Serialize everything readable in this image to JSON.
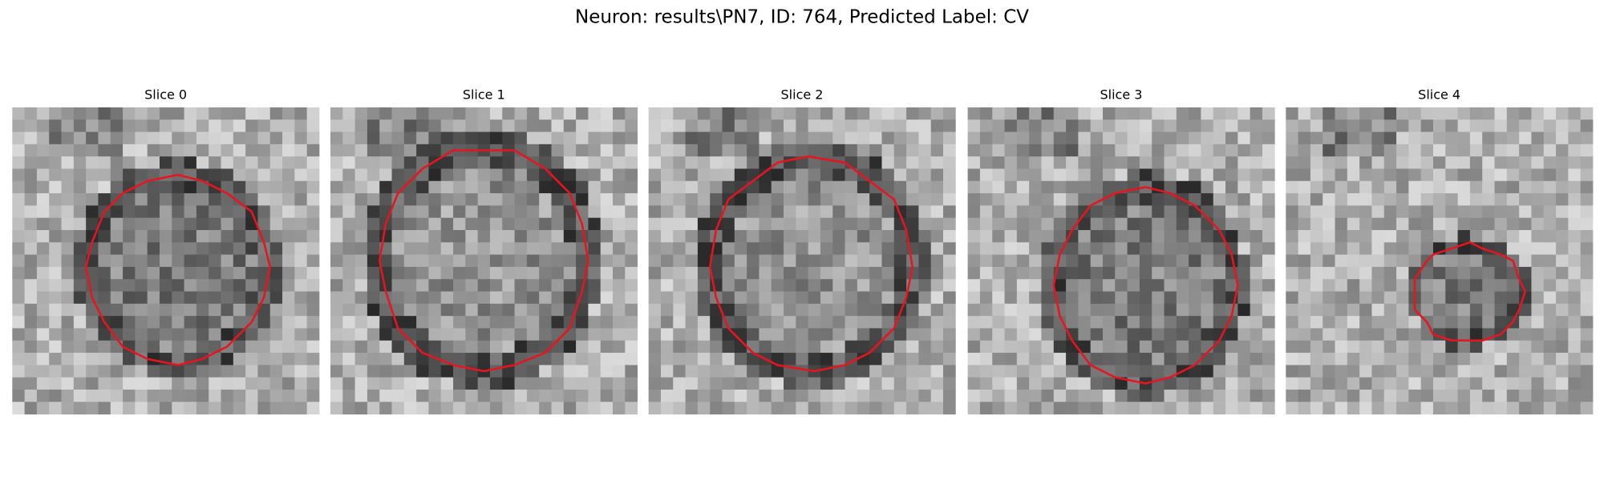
{
  "title": "Neuron: results\\PN7, ID: 764, Predicted Label: CV",
  "panels": [
    {
      "title": "Slice 0"
    },
    {
      "title": "Slice 1"
    },
    {
      "title": "Slice 2"
    },
    {
      "title": "Slice 3"
    },
    {
      "title": "Slice 4"
    }
  ]
}
